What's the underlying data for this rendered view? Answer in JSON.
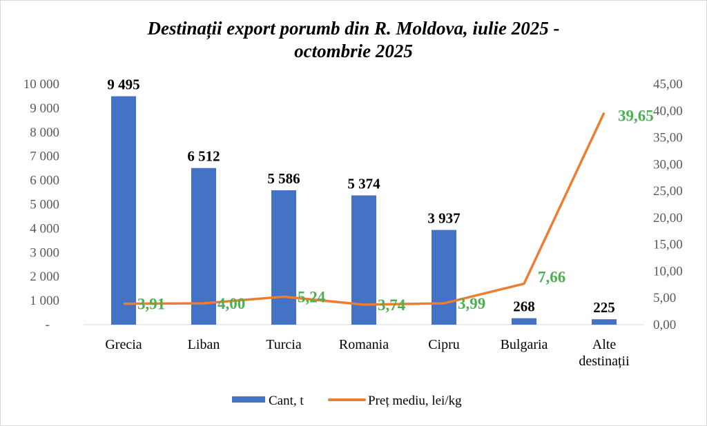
{
  "chart_data": {
    "type": "bar+line",
    "title_lines": [
      "Destinații export porumb din R. Moldova, iulie 2025 -",
      "octombrie 2025"
    ],
    "categories": [
      "Grecia",
      "Liban",
      "Turcia",
      "Romania",
      "Cipru",
      "Bulgaria",
      "Alte destinații"
    ],
    "series": [
      {
        "name": "Cant, t",
        "type": "bar",
        "axis": "left",
        "color": "#4472c4",
        "values": [
          9495,
          6512,
          5586,
          5374,
          3937,
          268,
          225
        ],
        "labels": [
          "9 495",
          "6 512",
          "5 586",
          "5 374",
          "3 937",
          "268",
          "225"
        ]
      },
      {
        "name": "Preț mediu, lei/kg",
        "type": "line",
        "axis": "right",
        "color": "#ed7d31",
        "label_color": "#4caf50",
        "values": [
          3.91,
          4.0,
          5.24,
          3.74,
          3.99,
          7.66,
          39.65
        ],
        "labels": [
          "3,91",
          "4,00",
          "5,24",
          "3,74",
          "3,99",
          "7,66",
          "39,65"
        ]
      }
    ],
    "left_axis": {
      "ylim": [
        0,
        10000
      ],
      "ticks": [
        "-",
        "1 000",
        "2 000",
        "3 000",
        "4 000",
        "5 000",
        "6 000",
        "7 000",
        "8 000",
        "9 000",
        "10 000"
      ]
    },
    "right_axis": {
      "ylim": [
        0,
        45
      ],
      "ticks": [
        "0,00",
        "5,00",
        "10,00",
        "15,00",
        "20,00",
        "25,00",
        "30,00",
        "35,00",
        "40,00",
        "45,00"
      ]
    },
    "grid": false,
    "legend": "bottom"
  }
}
